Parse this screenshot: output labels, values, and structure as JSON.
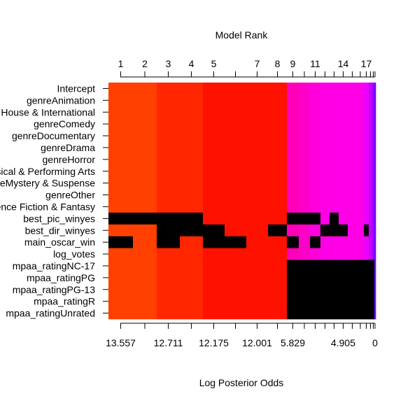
{
  "chart_data": {
    "type": "heatmap",
    "title": "Model Rank",
    "xlabel": "Log Posterior Odds",
    "rank_ticks": [
      "1",
      "2",
      "3",
      "4",
      "5",
      "7",
      "8",
      "9",
      "11",
      "14",
      "17"
    ],
    "odds_ticks": [
      "13.557",
      "12.711",
      "12.175",
      "12.001",
      "5.829",
      "4.905",
      "0"
    ],
    "variables": [
      "Intercept",
      "genreAnimation",
      "genreArt House & International",
      "genreComedy",
      "genreDocumentary",
      "genreDrama",
      "genreHorror",
      "genreMusical & Performing Arts",
      "genreMystery & Suspense",
      "genreOther",
      "genreScience Fiction & Fantasy",
      "best_pic_winyes",
      "best_dir_winyes",
      "main_oscar_win",
      "log_votes",
      "mpaa_ratingNC-17",
      "mpaa_ratingPG",
      "mpaa_ratingPG-13",
      "mpaa_ratingR",
      "mpaa_ratingUnrated"
    ],
    "models": [
      {
        "rank": 1,
        "color": "#ff4000"
      },
      {
        "rank": 2,
        "color": "#ff4000"
      },
      {
        "rank": 3,
        "color": "#ff2600"
      },
      {
        "rank": 4,
        "color": "#ff2600"
      },
      {
        "rank": 5,
        "color": "#ff1100"
      },
      {
        "rank": 6,
        "color": "#ff1100"
      },
      {
        "rank": 7,
        "color": "#ff1100"
      },
      {
        "rank": 8,
        "color": "#ff1100"
      },
      {
        "rank": 9,
        "color": "#ff00b8"
      },
      {
        "rank": 10,
        "color": "#ff00c8"
      },
      {
        "rank": 11,
        "color": "#ff00dc"
      },
      {
        "rank": 12,
        "color": "#ff00e6"
      },
      {
        "rank": 13,
        "color": "#ff00e6"
      },
      {
        "rank": 14,
        "color": "#ff00e6"
      },
      {
        "rank": 15,
        "color": "#ff00e6"
      },
      {
        "rank": 16,
        "color": "#ff00e6"
      },
      {
        "rank": 17,
        "color": "#ee00ff"
      },
      {
        "rank": 18,
        "color": "#c600ff"
      },
      {
        "rank": 19,
        "color": "#9e00ff"
      },
      {
        "rank": 20,
        "color": "#6a00ff"
      }
    ],
    "included": {
      "Intercept": [
        1,
        2,
        3,
        4,
        5,
        6,
        7,
        8,
        9,
        10,
        11,
        12,
        13,
        14,
        15,
        16,
        17,
        18,
        19,
        20
      ],
      "genreAnimation": [
        1,
        2,
        3,
        4,
        5,
        6,
        7,
        8,
        9,
        10,
        11,
        12,
        13,
        14,
        15,
        16,
        17,
        18,
        19,
        20
      ],
      "genreArt House & International": [
        1,
        2,
        3,
        4,
        5,
        6,
        7,
        8,
        9,
        10,
        11,
        12,
        13,
        14,
        15,
        16,
        17,
        18,
        19,
        20
      ],
      "genreComedy": [
        1,
        2,
        3,
        4,
        5,
        6,
        7,
        8,
        9,
        10,
        11,
        12,
        13,
        14,
        15,
        16,
        17,
        18,
        19,
        20
      ],
      "genreDocumentary": [
        1,
        2,
        3,
        4,
        5,
        6,
        7,
        8,
        9,
        10,
        11,
        12,
        13,
        14,
        15,
        16,
        17,
        18,
        19,
        20
      ],
      "genreDrama": [
        1,
        2,
        3,
        4,
        5,
        6,
        7,
        8,
        9,
        10,
        11,
        12,
        13,
        14,
        15,
        16,
        17,
        18,
        19,
        20
      ],
      "genreHorror": [
        1,
        2,
        3,
        4,
        5,
        6,
        7,
        8,
        9,
        10,
        11,
        12,
        13,
        14,
        15,
        16,
        17,
        18,
        19,
        20
      ],
      "genreMusical & Performing Arts": [
        1,
        2,
        3,
        4,
        5,
        6,
        7,
        8,
        9,
        10,
        11,
        12,
        13,
        14,
        15,
        16,
        17,
        18,
        19,
        20
      ],
      "genreMystery & Suspense": [
        1,
        2,
        3,
        4,
        5,
        6,
        7,
        8,
        9,
        10,
        11,
        12,
        13,
        14,
        15,
        16,
        17,
        18,
        19,
        20
      ],
      "genreOther": [
        1,
        2,
        3,
        4,
        5,
        6,
        7,
        8,
        9,
        10,
        11,
        12,
        13,
        14,
        15,
        16,
        17,
        18,
        19,
        20
      ],
      "genreScience Fiction & Fantasy": [
        1,
        2,
        3,
        4,
        5,
        6,
        7,
        8,
        9,
        10,
        11,
        12,
        13,
        14,
        15,
        16,
        17,
        18,
        19,
        20
      ],
      "best_pic_winyes": [
        5,
        6,
        7,
        8,
        12,
        14,
        15,
        16,
        17,
        18,
        19,
        20
      ],
      "best_dir_winyes": [
        1,
        2,
        6,
        7,
        9,
        10,
        11,
        15,
        16,
        18,
        19,
        20
      ],
      "main_oscar_win": [
        2,
        4,
        7,
        8,
        10,
        12,
        13,
        14,
        15,
        16,
        17,
        18,
        19,
        20
      ],
      "log_votes": [
        1,
        2,
        3,
        4,
        5,
        6,
        7,
        8,
        9,
        10,
        11,
        12,
        13,
        14,
        15,
        16,
        17,
        18,
        19,
        20
      ],
      "mpaa_ratingNC-17": [
        1,
        2,
        3,
        4,
        5,
        6,
        7,
        8,
        20
      ],
      "mpaa_ratingPG": [
        1,
        2,
        3,
        4,
        5,
        6,
        7,
        8,
        20
      ],
      "mpaa_ratingPG-13": [
        1,
        2,
        3,
        4,
        5,
        6,
        7,
        8,
        20
      ],
      "mpaa_ratingR": [
        1,
        2,
        3,
        4,
        5,
        6,
        7,
        8,
        20
      ],
      "mpaa_ratingUnrated": [
        1,
        2,
        3,
        4,
        5,
        6,
        7,
        8,
        20
      ]
    },
    "excluded_color": "#000000"
  }
}
